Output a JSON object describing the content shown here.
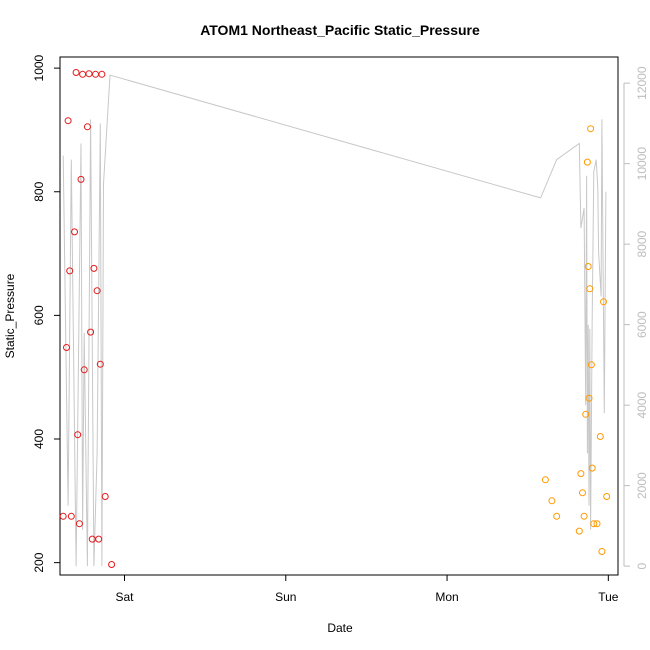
{
  "chart_data": {
    "type": "scatter",
    "title": "ATOM1 Northeast_Pacific Static_Pressure",
    "xlabel": "Date",
    "ylabel": "Static_Pressure",
    "x_ticks": [
      {
        "label": "Sat",
        "value": 1.0
      },
      {
        "label": "Sun",
        "value": 2.0
      },
      {
        "label": "Mon",
        "value": 3.0
      },
      {
        "label": "Tue",
        "value": 4.0
      }
    ],
    "y_ticks": [
      "200",
      "400",
      "600",
      "800",
      "1000"
    ],
    "y2_ticks": [
      "0",
      "2000",
      "4000",
      "6000",
      "8000",
      "10000",
      "12000"
    ],
    "xlim": [
      0.6,
      4.06
    ],
    "ylim": [
      180,
      1018
    ],
    "y2lim": [
      -220,
      12650
    ],
    "colors": {
      "series1": "#e41a1c",
      "series2": "#ff9900",
      "line": "#c8c8c8",
      "right_axis": "#bdbdbd"
    },
    "series": [
      {
        "color": "#e41a1c",
        "points": [
          {
            "x": 0.62,
            "y": 275
          },
          {
            "x": 0.64,
            "y": 548
          },
          {
            "x": 0.65,
            "y": 915
          },
          {
            "x": 0.66,
            "y": 672
          },
          {
            "x": 0.67,
            "y": 275
          },
          {
            "x": 0.69,
            "y": 735
          },
          {
            "x": 0.7,
            "y": 993
          },
          {
            "x": 0.71,
            "y": 407
          },
          {
            "x": 0.72,
            "y": 263
          },
          {
            "x": 0.73,
            "y": 820
          },
          {
            "x": 0.74,
            "y": 990
          },
          {
            "x": 0.75,
            "y": 512
          },
          {
            "x": 0.77,
            "y": 905
          },
          {
            "x": 0.78,
            "y": 991
          },
          {
            "x": 0.79,
            "y": 573
          },
          {
            "x": 0.8,
            "y": 238
          },
          {
            "x": 0.81,
            "y": 676
          },
          {
            "x": 0.82,
            "y": 990
          },
          {
            "x": 0.83,
            "y": 640
          },
          {
            "x": 0.84,
            "y": 238
          },
          {
            "x": 0.85,
            "y": 521
          },
          {
            "x": 0.86,
            "y": 990
          },
          {
            "x": 0.88,
            "y": 307
          },
          {
            "x": 0.92,
            "y": 197
          }
        ]
      },
      {
        "color": "#ff9900",
        "points": [
          {
            "x": 3.61,
            "y": 334
          },
          {
            "x": 3.65,
            "y": 300
          },
          {
            "x": 3.68,
            "y": 275
          },
          {
            "x": 3.82,
            "y": 251
          },
          {
            "x": 3.83,
            "y": 344
          },
          {
            "x": 3.84,
            "y": 313
          },
          {
            "x": 3.85,
            "y": 275
          },
          {
            "x": 3.86,
            "y": 440
          },
          {
            "x": 3.87,
            "y": 848
          },
          {
            "x": 3.875,
            "y": 679
          },
          {
            "x": 3.88,
            "y": 466
          },
          {
            "x": 3.885,
            "y": 643
          },
          {
            "x": 3.89,
            "y": 902
          },
          {
            "x": 3.895,
            "y": 520
          },
          {
            "x": 3.9,
            "y": 353
          },
          {
            "x": 3.91,
            "y": 263
          },
          {
            "x": 3.93,
            "y": 263
          },
          {
            "x": 3.95,
            "y": 404
          },
          {
            "x": 3.96,
            "y": 218
          },
          {
            "x": 3.97,
            "y": 622
          },
          {
            "x": 3.99,
            "y": 307
          }
        ]
      }
    ],
    "line_series": {
      "axis": "right",
      "points": [
        {
          "x": 0.62,
          "y": 10200
        },
        {
          "x": 0.65,
          "y": 1500
        },
        {
          "x": 0.67,
          "y": 10100
        },
        {
          "x": 0.7,
          "y": 0
        },
        {
          "x": 0.73,
          "y": 10500
        },
        {
          "x": 0.74,
          "y": 900
        },
        {
          "x": 0.75,
          "y": 5800
        },
        {
          "x": 0.77,
          "y": 0
        },
        {
          "x": 0.79,
          "y": 11100
        },
        {
          "x": 0.81,
          "y": 0
        },
        {
          "x": 0.83,
          "y": 2800
        },
        {
          "x": 0.85,
          "y": 11000
        },
        {
          "x": 0.86,
          "y": 0
        },
        {
          "x": 0.87,
          "y": 9500
        },
        {
          "x": 0.91,
          "y": 12200
        },
        {
          "x": 3.58,
          "y": 9150
        },
        {
          "x": 3.68,
          "y": 10100
        },
        {
          "x": 3.82,
          "y": 10500
        },
        {
          "x": 3.83,
          "y": 8400
        },
        {
          "x": 3.85,
          "y": 8900
        },
        {
          "x": 3.86,
          "y": 4000
        },
        {
          "x": 3.865,
          "y": 9700
        },
        {
          "x": 3.87,
          "y": 2800
        },
        {
          "x": 3.875,
          "y": 6000
        },
        {
          "x": 3.88,
          "y": 1500
        },
        {
          "x": 3.885,
          "y": 5900
        },
        {
          "x": 3.89,
          "y": 900
        },
        {
          "x": 3.9,
          "y": 6200
        },
        {
          "x": 3.91,
          "y": 9800
        },
        {
          "x": 3.925,
          "y": 10100
        },
        {
          "x": 3.935,
          "y": 9400
        },
        {
          "x": 3.94,
          "y": 7800
        },
        {
          "x": 3.955,
          "y": 6700
        },
        {
          "x": 3.96,
          "y": 11100
        },
        {
          "x": 3.975,
          "y": 3800
        },
        {
          "x": 3.985,
          "y": 9300
        }
      ]
    },
    "grid": false,
    "legend": "none"
  }
}
